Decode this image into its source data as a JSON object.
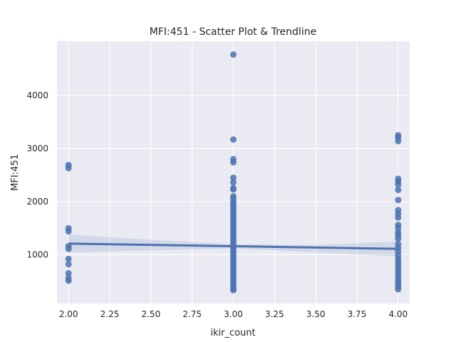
{
  "chart_data": {
    "type": "scatter",
    "title": "MFI:451 - Scatter Plot & Trendline",
    "xlabel": "ikir_count",
    "ylabel": "MFI:451",
    "xlim": [
      1.93,
      4.07
    ],
    "ylim": [
      80,
      5020
    ],
    "x_ticks": [
      2.0,
      2.25,
      2.5,
      2.75,
      3.0,
      3.25,
      3.5,
      3.75,
      4.0
    ],
    "x_tick_labels": [
      "2.00",
      "2.25",
      "2.50",
      "2.75",
      "3.00",
      "3.25",
      "3.50",
      "3.75",
      "4.00"
    ],
    "y_ticks": [
      1000,
      2000,
      3000,
      4000
    ],
    "y_tick_labels": [
      "1000",
      "2000",
      "3000",
      "4000"
    ],
    "grid": true,
    "colors": {
      "background": "#eaeaf2",
      "grid": "#ffffff",
      "points": "#4c72b0",
      "trend": "#4c72b0",
      "ci_band": "#4c72b0"
    },
    "points": [
      {
        "x": 2,
        "y": 2690
      },
      {
        "x": 2,
        "y": 2630
      },
      {
        "x": 2,
        "y": 1500
      },
      {
        "x": 2,
        "y": 1440
      },
      {
        "x": 2,
        "y": 1160
      },
      {
        "x": 2,
        "y": 1110
      },
      {
        "x": 2,
        "y": 920
      },
      {
        "x": 2,
        "y": 820
      },
      {
        "x": 2,
        "y": 650
      },
      {
        "x": 2,
        "y": 560
      },
      {
        "x": 2,
        "y": 510
      },
      {
        "x": 3,
        "y": 4770
      },
      {
        "x": 3,
        "y": 3170
      },
      {
        "x": 3,
        "y": 2800
      },
      {
        "x": 3,
        "y": 2740
      },
      {
        "x": 3,
        "y": 2450
      },
      {
        "x": 3,
        "y": 2360
      },
      {
        "x": 3,
        "y": 2250
      },
      {
        "x": 3,
        "y": 2230
      },
      {
        "x": 3,
        "y": 2100
      },
      {
        "x": 3,
        "y": 2050
      },
      {
        "x": 3,
        "y": 1990
      },
      {
        "x": 3,
        "y": 1950
      },
      {
        "x": 3,
        "y": 1900
      },
      {
        "x": 3,
        "y": 1850
      },
      {
        "x": 3,
        "y": 1800
      },
      {
        "x": 3,
        "y": 1750
      },
      {
        "x": 3,
        "y": 1700
      },
      {
        "x": 3,
        "y": 1650
      },
      {
        "x": 3,
        "y": 1600
      },
      {
        "x": 3,
        "y": 1550
      },
      {
        "x": 3,
        "y": 1500
      },
      {
        "x": 3,
        "y": 1450
      },
      {
        "x": 3,
        "y": 1400
      },
      {
        "x": 3,
        "y": 1350
      },
      {
        "x": 3,
        "y": 1300
      },
      {
        "x": 3,
        "y": 1250
      },
      {
        "x": 3,
        "y": 1200
      },
      {
        "x": 3,
        "y": 1150
      },
      {
        "x": 3,
        "y": 1100
      },
      {
        "x": 3,
        "y": 1050
      },
      {
        "x": 3,
        "y": 1000
      },
      {
        "x": 3,
        "y": 950
      },
      {
        "x": 3,
        "y": 900
      },
      {
        "x": 3,
        "y": 850
      },
      {
        "x": 3,
        "y": 800
      },
      {
        "x": 3,
        "y": 750
      },
      {
        "x": 3,
        "y": 700
      },
      {
        "x": 3,
        "y": 650
      },
      {
        "x": 3,
        "y": 600
      },
      {
        "x": 3,
        "y": 550
      },
      {
        "x": 3,
        "y": 500
      },
      {
        "x": 3,
        "y": 450
      },
      {
        "x": 3,
        "y": 400
      },
      {
        "x": 3,
        "y": 360
      },
      {
        "x": 3,
        "y": 330
      },
      {
        "x": 4,
        "y": 3250
      },
      {
        "x": 4,
        "y": 3210
      },
      {
        "x": 4,
        "y": 3140
      },
      {
        "x": 4,
        "y": 2430
      },
      {
        "x": 4,
        "y": 2380
      },
      {
        "x": 4,
        "y": 2320
      },
      {
        "x": 4,
        "y": 2220
      },
      {
        "x": 4,
        "y": 2030
      },
      {
        "x": 4,
        "y": 1840
      },
      {
        "x": 4,
        "y": 1770
      },
      {
        "x": 4,
        "y": 1700
      },
      {
        "x": 4,
        "y": 1560
      },
      {
        "x": 4,
        "y": 1500
      },
      {
        "x": 4,
        "y": 1420
      },
      {
        "x": 4,
        "y": 1370
      },
      {
        "x": 4,
        "y": 1300
      },
      {
        "x": 4,
        "y": 1200
      },
      {
        "x": 4,
        "y": 1130
      },
      {
        "x": 4,
        "y": 1060
      },
      {
        "x": 4,
        "y": 990
      },
      {
        "x": 4,
        "y": 920
      },
      {
        "x": 4,
        "y": 860
      },
      {
        "x": 4,
        "y": 800
      },
      {
        "x": 4,
        "y": 740
      },
      {
        "x": 4,
        "y": 680
      },
      {
        "x": 4,
        "y": 620
      },
      {
        "x": 4,
        "y": 560
      },
      {
        "x": 4,
        "y": 500
      },
      {
        "x": 4,
        "y": 450
      },
      {
        "x": 4,
        "y": 400
      },
      {
        "x": 4,
        "y": 350
      }
    ],
    "trendline": {
      "x": [
        2,
        4
      ],
      "y": [
        1210,
        1110
      ]
    },
    "confidence_band": {
      "x": [
        2,
        2.5,
        3,
        3.5,
        4
      ],
      "upper": [
        1380,
        1280,
        1200,
        1180,
        1250
      ],
      "lower": [
        1040,
        1080,
        1120,
        1040,
        970
      ]
    }
  }
}
